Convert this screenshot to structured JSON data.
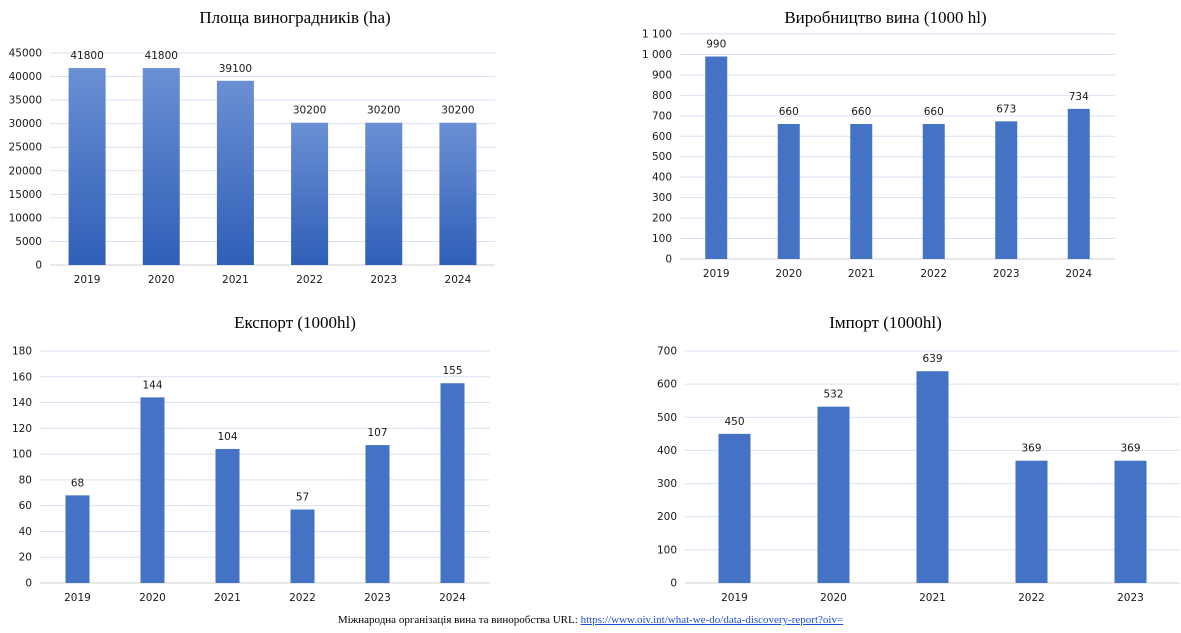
{
  "chart_data": [
    {
      "type": "bar",
      "title": "Площа виноградників (ha)",
      "categories": [
        "2019",
        "2020",
        "2021",
        "2022",
        "2023",
        "2024"
      ],
      "values": [
        41800,
        41800,
        39100,
        30200,
        30200,
        30200
      ],
      "data_labels": [
        "41800",
        "41800",
        "39100",
        "30200",
        "30200",
        "30200"
      ],
      "ylim": [
        0,
        45000
      ],
      "yticks": [
        "0",
        "5000",
        "10000",
        "15000",
        "20000",
        "25000",
        "30000",
        "35000",
        "40000",
        "45000"
      ],
      "xlabel": "",
      "ylabel": "",
      "grid": true,
      "bar_color": "#4472c4",
      "bar_gradient": [
        "#6b8fd3",
        "#2f5fb8"
      ]
    },
    {
      "type": "bar",
      "title": "Виробництво вина (1000 hl)",
      "categories": [
        "2019",
        "2020",
        "2021",
        "2022",
        "2023",
        "2024"
      ],
      "values": [
        990,
        660,
        660,
        660,
        673,
        734
      ],
      "data_labels": [
        "990",
        "660",
        "660",
        "660",
        "673",
        "734"
      ],
      "ylim": [
        0,
        1100
      ],
      "yticks": [
        "0",
        "100",
        "200",
        "300",
        "400",
        "500",
        "600",
        "700",
        "800",
        "900",
        "1 000",
        "1 100"
      ],
      "xlabel": "",
      "ylabel": "",
      "grid": true,
      "bar_color": "#4472c4"
    },
    {
      "type": "bar",
      "title": "Експорт (1000hl)",
      "categories": [
        "2019",
        "2020",
        "2021",
        "2022",
        "2023",
        "2024"
      ],
      "values": [
        68,
        144,
        104,
        57,
        107,
        155
      ],
      "data_labels": [
        "68",
        "144",
        "104",
        "57",
        "107",
        "155"
      ],
      "ylim": [
        0,
        180
      ],
      "yticks": [
        "0",
        "20",
        "40",
        "60",
        "80",
        "100",
        "120",
        "140",
        "160",
        "180"
      ],
      "xlabel": "",
      "ylabel": "",
      "grid": true,
      "bar_color": "#4472c4"
    },
    {
      "type": "bar",
      "title": "Імпорт (1000hl)",
      "categories": [
        "2019",
        "2020",
        "2021",
        "2022",
        "2023"
      ],
      "values": [
        450,
        532,
        639,
        369,
        369
      ],
      "data_labels": [
        "450",
        "532",
        "639",
        "369",
        "369"
      ],
      "ylim": [
        0,
        700
      ],
      "yticks": [
        "0",
        "100",
        "200",
        "300",
        "400",
        "500",
        "600",
        "700"
      ],
      "xlabel": "",
      "ylabel": "",
      "grid": true,
      "bar_color": "#4472c4"
    }
  ],
  "footer": {
    "prefix": "Міжнародна організація вина та виноробства URL: ",
    "link": "https://www.oiv.int/what-we-do/data-discovery-report?oiv="
  },
  "colors": {
    "grid": "#d9e2f3",
    "bar": "#4472c4",
    "link": "#1f4fd8"
  }
}
